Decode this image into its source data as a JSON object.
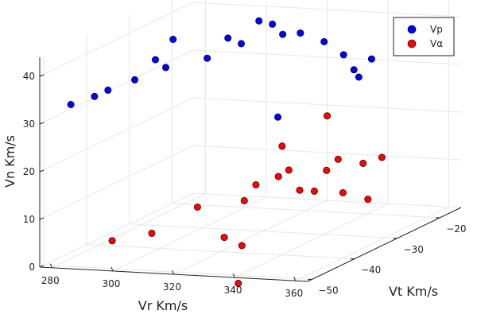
{
  "chart_data": {
    "type": "scatter",
    "series": [
      {
        "name": "Vp",
        "color": "#0000ff",
        "points": [
          {
            "x": 282,
            "y": -48,
            "z": 33
          },
          {
            "x": 287,
            "y": -46,
            "z": 34
          },
          {
            "x": 290,
            "y": -45,
            "z": 35
          },
          {
            "x": 296,
            "y": -43,
            "z": 36.5
          },
          {
            "x": 300,
            "y": -41,
            "z": 40
          },
          {
            "x": 302,
            "y": -40,
            "z": 38
          },
          {
            "x": 303,
            "y": -39,
            "z": 43.5
          },
          {
            "x": 310,
            "y": -36,
            "z": 38.5
          },
          {
            "x": 314,
            "y": -34,
            "z": 42
          },
          {
            "x": 317,
            "y": -33,
            "z": 40.5
          },
          {
            "x": 320,
            "y": -31,
            "z": 44.5
          },
          {
            "x": 323,
            "y": -30,
            "z": 43.5
          },
          {
            "x": 325,
            "y": -29,
            "z": 41
          },
          {
            "x": 328,
            "y": -27,
            "z": 40.5
          },
          {
            "x": 333,
            "y": -25,
            "z": 38
          },
          {
            "x": 338,
            "y": -24,
            "z": 35
          },
          {
            "x": 340,
            "y": -23,
            "z": 31.5
          },
          {
            "x": 343,
            "y": -21,
            "z": 33
          },
          {
            "x": 343,
            "y": -24,
            "z": 30.5
          },
          {
            "x": 329,
            "y": -33,
            "z": 25.5
          }
        ]
      },
      {
        "name": "Vα",
        "color": "#ff0000",
        "points": [
          {
            "x": 290,
            "y": -44,
            "z": 3
          },
          {
            "x": 303,
            "y": -44,
            "z": 5
          },
          {
            "x": 318,
            "y": -44,
            "z": 11
          },
          {
            "x": 327,
            "y": -40,
            "z": 1.5
          },
          {
            "x": 324,
            "y": -42,
            "z": 4
          },
          {
            "x": 330,
            "y": -43,
            "z": -5
          },
          {
            "x": 325,
            "y": -38,
            "z": 10
          },
          {
            "x": 326,
            "y": -36,
            "z": 12.5
          },
          {
            "x": 332,
            "y": -35,
            "z": 14
          },
          {
            "x": 329,
            "y": -32,
            "z": 19
          },
          {
            "x": 334,
            "y": -34,
            "z": 15
          },
          {
            "x": 332,
            "y": -30,
            "z": 9
          },
          {
            "x": 334,
            "y": -28,
            "z": 8
          },
          {
            "x": 342,
            "y": -27,
            "z": 7.5
          },
          {
            "x": 338,
            "y": -28,
            "z": 12.5
          },
          {
            "x": 339,
            "y": -26,
            "z": 14
          },
          {
            "x": 343,
            "y": -23,
            "z": 12
          },
          {
            "x": 345,
            "y": -20,
            "z": 12
          },
          {
            "x": 346,
            "y": -24,
            "z": 5
          },
          {
            "x": 334,
            "y": -25,
            "z": 22.5
          }
        ]
      }
    ],
    "xlabel": "Vr Km/s",
    "ylabel": "Vt Km/s",
    "zlabel": "Vn Km/s",
    "x_ticks": [
      280,
      300,
      320,
      340,
      360
    ],
    "y_ticks": [
      -50,
      -40,
      -30,
      -20
    ],
    "z_ticks": [
      0,
      10,
      20,
      30,
      40
    ],
    "xlim": [
      276,
      364
    ],
    "ylim": [
      -51,
      -15
    ],
    "zlim": [
      0,
      44
    ],
    "x_tick_labels": [
      "280",
      "300",
      "320",
      "340",
      "360"
    ],
    "y_tick_labels": [
      "−50",
      "−40",
      "−30",
      "−20"
    ],
    "z_tick_labels": [
      "0",
      "10",
      "20",
      "30",
      "40"
    ],
    "grid": true,
    "legend_position": "top-right",
    "marker_outline_color": "#000000",
    "grid_color": "#e6e6e6",
    "axis_color": "#222222"
  }
}
